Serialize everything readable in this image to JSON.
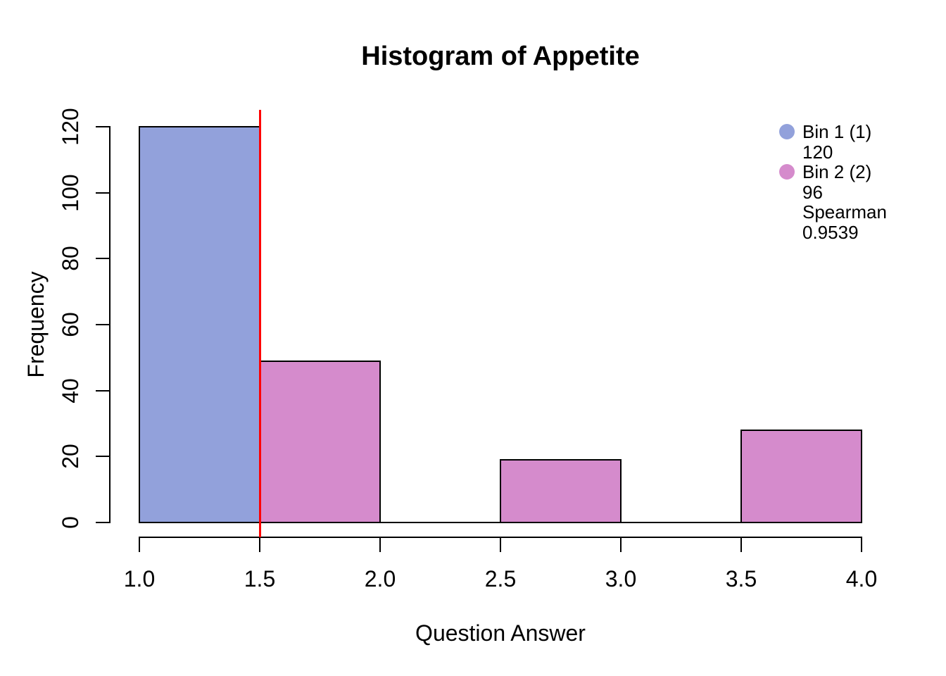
{
  "chart_data": {
    "type": "bar",
    "subtype": "histogram",
    "title": "Histogram of Appetite",
    "xlabel": "Question Answer",
    "ylabel": "Frequency",
    "xlim": [
      1.0,
      4.0
    ],
    "ylim": [
      0,
      120
    ],
    "grid": false,
    "background_color": "#FFFFFF",
    "axis_color": "#000000",
    "x_ticks": [
      {
        "value": 1.0,
        "label": "1.0"
      },
      {
        "value": 1.5,
        "label": "1.5"
      },
      {
        "value": 2.0,
        "label": "2.0"
      },
      {
        "value": 2.5,
        "label": "2.5"
      },
      {
        "value": 3.0,
        "label": "3.0"
      },
      {
        "value": 3.5,
        "label": "3.5"
      },
      {
        "value": 4.0,
        "label": "4.0"
      }
    ],
    "y_ticks": [
      {
        "value": 0,
        "label": "0"
      },
      {
        "value": 20,
        "label": "20"
      },
      {
        "value": 40,
        "label": "40"
      },
      {
        "value": 60,
        "label": "60"
      },
      {
        "value": 80,
        "label": "80"
      },
      {
        "value": 100,
        "label": "100"
      },
      {
        "value": 120,
        "label": "120"
      }
    ],
    "bins": [
      {
        "start": 1.0,
        "end": 1.5,
        "count": 120,
        "series": "Bin 1",
        "color": "#92A1DB"
      },
      {
        "start": 1.5,
        "end": 2.0,
        "count": 49,
        "series": "Bin 2",
        "color": "#D58BCC"
      },
      {
        "start": 2.0,
        "end": 2.5,
        "count": 0,
        "series": "Bin 2",
        "color": "#D58BCC"
      },
      {
        "start": 2.5,
        "end": 3.0,
        "count": 19,
        "series": "Bin 2",
        "color": "#D58BCC"
      },
      {
        "start": 3.0,
        "end": 3.5,
        "count": 0,
        "series": "Bin 2",
        "color": "#D58BCC"
      },
      {
        "start": 3.5,
        "end": 4.0,
        "count": 28,
        "series": "Bin 2",
        "color": "#D58BCC"
      }
    ],
    "bar_border_color": "#000000",
    "reference_line": {
      "x": 1.5,
      "color": "#FF0000"
    },
    "legend": {
      "position": "top-right",
      "entries": [
        {
          "swatch_color": "#92A1DB",
          "label": "Bin 1 (1)",
          "sublines": [
            "120"
          ]
        },
        {
          "swatch_color": "#D58BCC",
          "label": "Bin 2 (2)",
          "sublines": [
            "96",
            "Spearman",
            "0.9539"
          ]
        }
      ]
    }
  }
}
